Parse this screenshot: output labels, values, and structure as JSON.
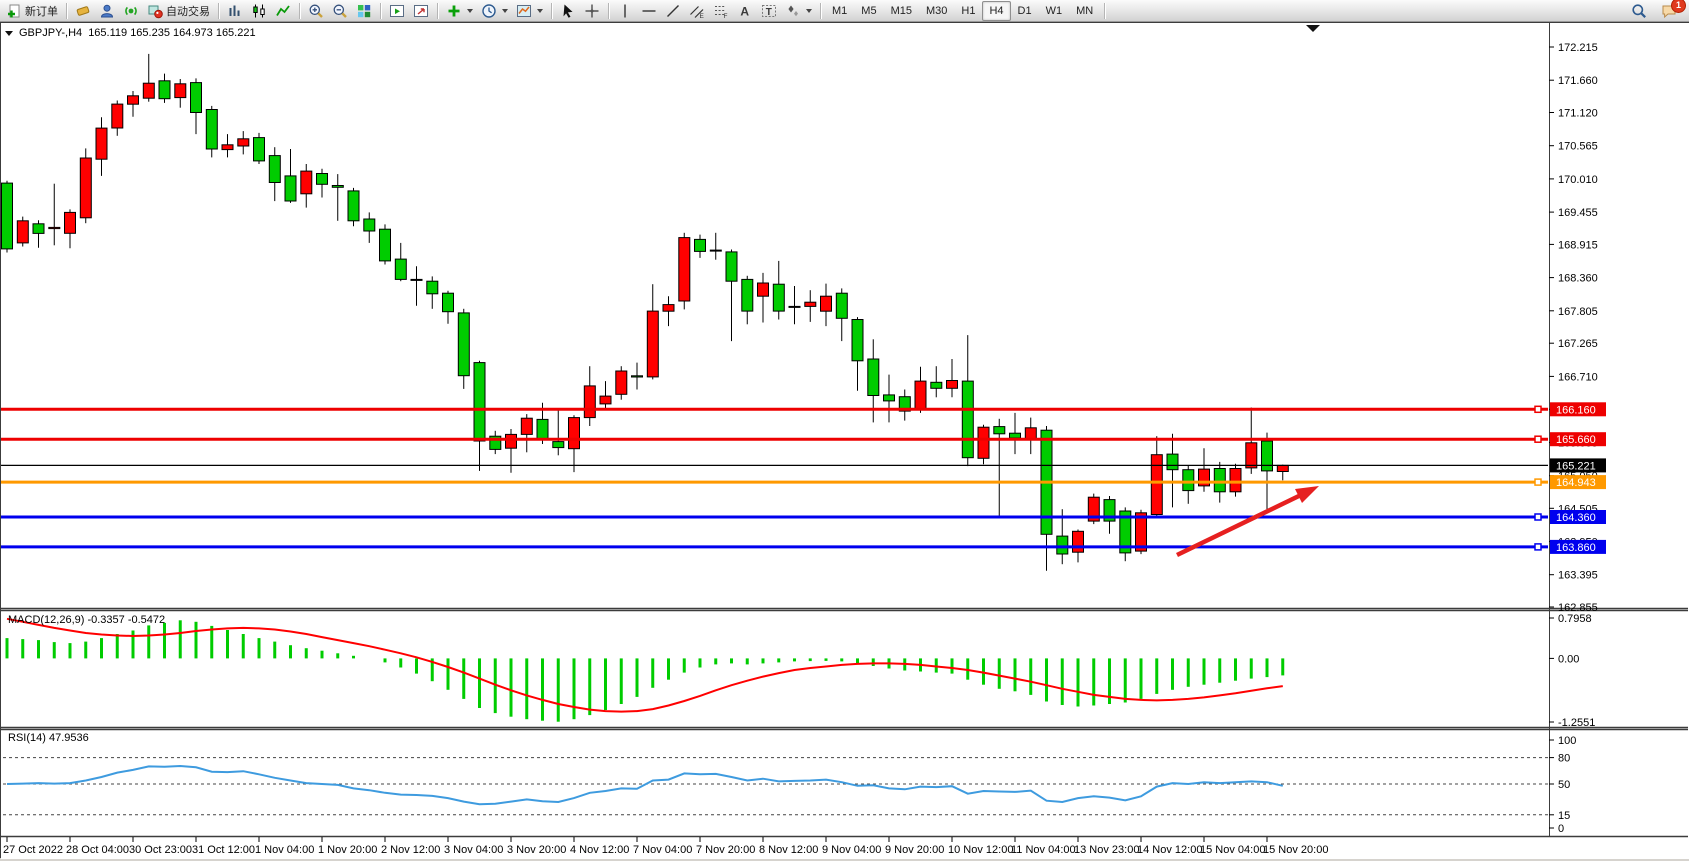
{
  "toolbar": {
    "notification_count": "1",
    "groups": [
      [
        {
          "n": "new-order",
          "icon": "new-order",
          "label": "新订单"
        }
      ],
      [
        {
          "n": "eraser",
          "icon": "eraser"
        },
        {
          "n": "trader-profile",
          "icon": "profile"
        },
        {
          "n": "market-signal",
          "icon": "signal"
        },
        {
          "n": "auto-trading",
          "icon": "autotrade",
          "label": "自动交易"
        }
      ],
      [
        {
          "n": "bar-chart-mode",
          "icon": "bar-chart"
        },
        {
          "n": "candle-chart-mode",
          "icon": "candle-chart"
        },
        {
          "n": "line-chart-mode",
          "icon": "line-chart"
        }
      ],
      [
        {
          "n": "zoom-in",
          "icon": "zoom-in"
        },
        {
          "n": "zoom-out",
          "icon": "zoom-out"
        },
        {
          "n": "tile-windows",
          "icon": "tiles"
        }
      ],
      [
        {
          "n": "auto-scroll",
          "icon": "chart-play"
        },
        {
          "n": "chart-shift",
          "icon": "chart-add"
        }
      ],
      [
        {
          "n": "add-indicator",
          "icon": "indicator-add",
          "caret": true
        },
        {
          "n": "period-menu",
          "icon": "clock",
          "caret": true
        },
        {
          "n": "template-menu",
          "icon": "template",
          "caret": true
        }
      ],
      [
        {
          "n": "cursor-tool",
          "icon": "cursor"
        },
        {
          "n": "crosshair-tool",
          "icon": "crosshair"
        }
      ],
      [
        {
          "n": "vline-tool",
          "icon": "vline"
        },
        {
          "n": "hline-tool",
          "icon": "hline"
        },
        {
          "n": "trendline-tool",
          "icon": "trendline"
        },
        {
          "n": "channel-tool",
          "icon": "channel"
        },
        {
          "n": "fibonacci-tool",
          "icon": "fibo"
        },
        {
          "n": "text-tool",
          "icon": "text-a"
        },
        {
          "n": "label-tool",
          "icon": "label-t"
        },
        {
          "n": "shapes-tool",
          "icon": "shapes",
          "caret": true
        }
      ]
    ],
    "timeframes": [
      {
        "label": "M1"
      },
      {
        "label": "M5"
      },
      {
        "label": "M15"
      },
      {
        "label": "M30"
      },
      {
        "label": "H1"
      },
      {
        "label": "H4",
        "active": true
      },
      {
        "label": "D1"
      },
      {
        "label": "W1"
      },
      {
        "label": "MN"
      }
    ]
  },
  "window": {
    "title_symbol": "GBPJPY-,H4",
    "title_ohlc": "165.119 165.235 164.973 165.221"
  },
  "indicators": {
    "macd_label": "MACD(12,26,9) -0.3357 -0.5472",
    "rsi_label": "RSI(14) 47.9536"
  },
  "chart_data": {
    "type": "candlestick",
    "symbol": "GBPJPY-",
    "timeframe": "H4",
    "current_bar": {
      "open": 165.119,
      "high": 165.235,
      "low": 164.973,
      "close": 165.221
    },
    "price_axis_range": [
      162.855,
      172.215
    ],
    "price_ticks": [
      "172.215",
      "171.660",
      "171.120",
      "170.565",
      "170.010",
      "169.455",
      "168.915",
      "168.360",
      "167.805",
      "167.265",
      "166.710",
      "166.160",
      "165.605",
      "165.050",
      "164.505",
      "163.950",
      "163.395",
      "162.855"
    ],
    "time_labels": [
      "27 Oct 2022",
      "28 Oct 04:00",
      "30 Oct 23:00",
      "31 Oct 12:00",
      "1 Nov 04:00",
      "1 Nov 20:00",
      "2 Nov 12:00",
      "3 Nov 04:00",
      "3 Nov 20:00",
      "4 Nov 12:00",
      "7 Nov 04:00",
      "7 Nov 20:00",
      "8 Nov 12:00",
      "9 Nov 04:00",
      "9 Nov 20:00",
      "10 Nov 12:00",
      "11 Nov 04:00",
      "13 Nov 23:00",
      "14 Nov 12:00",
      "15 Nov 04:00",
      "15 Nov 20:00"
    ],
    "levels": [
      {
        "price": 166.16,
        "label": "166.160",
        "color": "#ee0000",
        "width": 3
      },
      {
        "price": 165.66,
        "label": "165.660",
        "color": "#ee0000",
        "width": 3
      },
      {
        "price": 164.943,
        "label": "164.943",
        "color": "#ff9900",
        "width": 3
      },
      {
        "price": 164.36,
        "label": "164.360",
        "color": "#0000ee",
        "width": 3
      },
      {
        "price": 163.86,
        "label": "163.860",
        "color": "#0000ee",
        "width": 3
      }
    ],
    "current_price": {
      "value": 165.221,
      "label": "165.221",
      "color": "#000000"
    },
    "candles": [
      [
        169.94,
        169.98,
        168.78,
        168.84
      ],
      [
        168.94,
        169.38,
        168.88,
        169.31
      ],
      [
        169.26,
        169.32,
        168.86,
        169.1
      ],
      [
        169.18,
        169.93,
        168.9,
        169.2
      ],
      [
        169.1,
        169.5,
        168.85,
        169.45
      ],
      [
        169.36,
        170.52,
        169.27,
        170.36
      ],
      [
        170.34,
        171.04,
        170.06,
        170.86
      ],
      [
        170.86,
        171.32,
        170.73,
        171.26
      ],
      [
        171.26,
        171.48,
        171.05,
        171.4
      ],
      [
        171.36,
        172.1,
        171.3,
        171.61
      ],
      [
        171.65,
        171.77,
        171.28,
        171.35
      ],
      [
        171.37,
        171.68,
        171.2,
        171.6
      ],
      [
        171.62,
        171.69,
        170.76,
        171.12
      ],
      [
        171.17,
        171.23,
        170.37,
        170.51
      ],
      [
        170.5,
        170.76,
        170.37,
        170.58
      ],
      [
        170.56,
        170.81,
        170.42,
        170.68
      ],
      [
        170.7,
        170.78,
        170.26,
        170.31
      ],
      [
        170.4,
        170.54,
        169.64,
        169.95
      ],
      [
        170.06,
        170.51,
        169.61,
        169.64
      ],
      [
        169.76,
        170.26,
        169.53,
        170.14
      ],
      [
        170.1,
        170.18,
        169.7,
        169.92
      ],
      [
        169.9,
        170.09,
        169.31,
        169.87
      ],
      [
        169.81,
        169.86,
        169.22,
        169.31
      ],
      [
        169.34,
        169.45,
        168.94,
        169.14
      ],
      [
        169.17,
        169.25,
        168.58,
        168.64
      ],
      [
        168.67,
        168.94,
        168.3,
        168.33
      ],
      [
        168.33,
        168.55,
        167.89,
        168.32
      ],
      [
        168.3,
        168.38,
        167.84,
        168.09
      ],
      [
        168.1,
        168.14,
        167.59,
        167.79
      ],
      [
        167.77,
        167.84,
        166.5,
        166.72
      ],
      [
        166.94,
        166.97,
        165.13,
        165.63
      ],
      [
        165.71,
        165.8,
        165.41,
        165.49
      ],
      [
        165.51,
        165.83,
        165.1,
        165.74
      ],
      [
        165.74,
        166.08,
        165.44,
        166.01
      ],
      [
        165.99,
        166.27,
        165.58,
        165.66
      ],
      [
        165.62,
        166.17,
        165.39,
        165.52
      ],
      [
        165.5,
        166.06,
        165.11,
        166.02
      ],
      [
        166.02,
        166.88,
        165.88,
        166.55
      ],
      [
        166.25,
        166.63,
        166.16,
        166.38
      ],
      [
        166.41,
        166.88,
        166.32,
        166.8
      ],
      [
        166.72,
        166.94,
        166.49,
        166.7
      ],
      [
        166.7,
        168.25,
        166.66,
        167.8
      ],
      [
        167.8,
        168.05,
        167.55,
        167.91
      ],
      [
        167.97,
        169.11,
        167.83,
        169.03
      ],
      [
        169.0,
        169.08,
        168.69,
        168.8
      ],
      [
        168.82,
        169.11,
        168.66,
        168.82
      ],
      [
        168.79,
        168.83,
        167.3,
        168.3
      ],
      [
        168.33,
        168.39,
        167.58,
        167.8
      ],
      [
        168.05,
        168.44,
        167.61,
        168.27
      ],
      [
        168.25,
        168.64,
        167.66,
        167.8
      ],
      [
        167.87,
        168.22,
        167.58,
        167.88
      ],
      [
        167.88,
        168.15,
        167.62,
        167.95
      ],
      [
        167.8,
        168.26,
        167.55,
        168.05
      ],
      [
        168.1,
        168.18,
        167.3,
        167.68
      ],
      [
        167.66,
        167.7,
        166.47,
        166.97
      ],
      [
        167.0,
        167.33,
        165.94,
        166.39
      ],
      [
        166.4,
        166.74,
        165.94,
        166.3
      ],
      [
        166.37,
        166.49,
        165.97,
        166.13
      ],
      [
        166.16,
        166.87,
        166.1,
        166.63
      ],
      [
        166.61,
        166.88,
        166.36,
        166.51
      ],
      [
        166.51,
        167.0,
        166.36,
        166.64
      ],
      [
        166.63,
        167.4,
        165.21,
        165.35
      ],
      [
        165.34,
        165.9,
        165.24,
        165.86
      ],
      [
        165.87,
        166.0,
        164.38,
        165.75
      ],
      [
        165.76,
        166.1,
        165.41,
        165.68
      ],
      [
        165.67,
        166.02,
        165.41,
        165.85
      ],
      [
        165.81,
        165.88,
        163.46,
        164.07
      ],
      [
        164.04,
        164.49,
        163.57,
        163.74
      ],
      [
        163.77,
        164.15,
        163.6,
        164.12
      ],
      [
        164.29,
        164.75,
        164.24,
        164.69
      ],
      [
        164.65,
        164.71,
        164.08,
        164.29
      ],
      [
        164.46,
        164.52,
        163.62,
        163.76
      ],
      [
        163.79,
        164.48,
        163.74,
        164.43
      ],
      [
        164.4,
        165.71,
        164.35,
        165.4
      ],
      [
        165.41,
        165.75,
        164.52,
        165.15
      ],
      [
        165.15,
        165.22,
        164.58,
        164.8
      ],
      [
        164.88,
        165.51,
        164.78,
        165.16
      ],
      [
        165.17,
        165.28,
        164.6,
        164.78
      ],
      [
        164.78,
        165.25,
        164.7,
        165.17
      ],
      [
        165.18,
        166.19,
        165.08,
        165.6
      ],
      [
        165.63,
        165.77,
        164.47,
        165.13
      ],
      [
        165.119,
        165.235,
        164.973,
        165.221
      ]
    ],
    "macd": {
      "params": "12,26,9",
      "value": -0.3357,
      "signal_value": -0.5472,
      "axis_labels": [
        "0.7958",
        "0.00",
        "-1.2551"
      ],
      "axis_values": [
        0.7958,
        0.0,
        -1.2551
      ],
      "histogram": [
        0.4,
        0.38,
        0.36,
        0.32,
        0.3,
        0.33,
        0.4,
        0.48,
        0.55,
        0.65,
        0.7,
        0.75,
        0.72,
        0.64,
        0.56,
        0.48,
        0.4,
        0.33,
        0.26,
        0.2,
        0.15,
        0.1,
        0.05,
        0.0,
        -0.08,
        -0.18,
        -0.3,
        -0.45,
        -0.62,
        -0.8,
        -0.98,
        -1.08,
        -1.15,
        -1.2,
        -1.23,
        -1.25,
        -1.2,
        -1.12,
        -1.02,
        -0.9,
        -0.76,
        -0.58,
        -0.42,
        -0.28,
        -0.18,
        -0.12,
        -0.1,
        -0.12,
        -0.1,
        -0.08,
        -0.06,
        -0.055,
        -0.05,
        -0.06,
        -0.1,
        -0.15,
        -0.2,
        -0.24,
        -0.26,
        -0.28,
        -0.3,
        -0.42,
        -0.52,
        -0.6,
        -0.65,
        -0.72,
        -0.85,
        -0.92,
        -0.95,
        -0.93,
        -0.9,
        -0.87,
        -0.8,
        -0.7,
        -0.62,
        -0.56,
        -0.52,
        -0.48,
        -0.44,
        -0.4,
        -0.37,
        -0.3357
      ],
      "signal": [
        0.78,
        0.72,
        0.66,
        0.6,
        0.55,
        0.5,
        0.47,
        0.45,
        0.44,
        0.45,
        0.47,
        0.5,
        0.54,
        0.57,
        0.59,
        0.6,
        0.59,
        0.57,
        0.53,
        0.48,
        0.42,
        0.36,
        0.3,
        0.24,
        0.17,
        0.1,
        0.02,
        -0.07,
        -0.17,
        -0.28,
        -0.4,
        -0.52,
        -0.63,
        -0.73,
        -0.82,
        -0.9,
        -0.96,
        -1.01,
        -1.04,
        -1.05,
        -1.04,
        -1.0,
        -0.93,
        -0.84,
        -0.74,
        -0.63,
        -0.53,
        -0.44,
        -0.36,
        -0.29,
        -0.23,
        -0.19,
        -0.16,
        -0.13,
        -0.11,
        -0.1,
        -0.1,
        -0.11,
        -0.13,
        -0.16,
        -0.19,
        -0.23,
        -0.28,
        -0.34,
        -0.4,
        -0.46,
        -0.53,
        -0.6,
        -0.66,
        -0.72,
        -0.76,
        -0.8,
        -0.82,
        -0.83,
        -0.82,
        -0.8,
        -0.77,
        -0.73,
        -0.69,
        -0.64,
        -0.59,
        -0.5472
      ]
    },
    "rsi": {
      "period": 14,
      "value": 47.9536,
      "axis_labels": [
        "100",
        "80",
        "50",
        "15",
        "0"
      ],
      "axis_values": [
        100,
        80,
        50,
        15,
        0
      ],
      "dashed_levels": [
        80,
        50,
        15
      ],
      "values": [
        50,
        50.5,
        51,
        50.5,
        51,
        54,
        58,
        63,
        66,
        70,
        69.5,
        70.5,
        69,
        64,
        63.5,
        64.5,
        61,
        57,
        54,
        51,
        50,
        49,
        45,
        43,
        40,
        38,
        37.5,
        36.5,
        34,
        30,
        27,
        27.5,
        30,
        32.5,
        30.5,
        29.5,
        34,
        40,
        42,
        45,
        44.5,
        54,
        55,
        62,
        61,
        61.5,
        58,
        54,
        56,
        53,
        53.5,
        54,
        55,
        52,
        48,
        48.5,
        45,
        44,
        47,
        46.5,
        47.5,
        39,
        42,
        41.5,
        41,
        42.5,
        31,
        29.5,
        34,
        36,
        34.5,
        31.5,
        36,
        47,
        51,
        50,
        52,
        51,
        52,
        53,
        52,
        48
      ]
    },
    "annotation_arrow": {
      "from": [
        1176,
        554
      ],
      "to": [
        1302,
        493
      ],
      "tip": [
        1318,
        485
      ],
      "color": "#e62020"
    },
    "colors": {
      "bull": "#ff0000",
      "bear": "#00cc00",
      "wick": "#000000",
      "macd_hist": "#00cc00",
      "macd_signal": "#ff0000",
      "rsi_line": "#3e9bdf",
      "background": "#ffffff",
      "axis_text": "#000000"
    }
  }
}
